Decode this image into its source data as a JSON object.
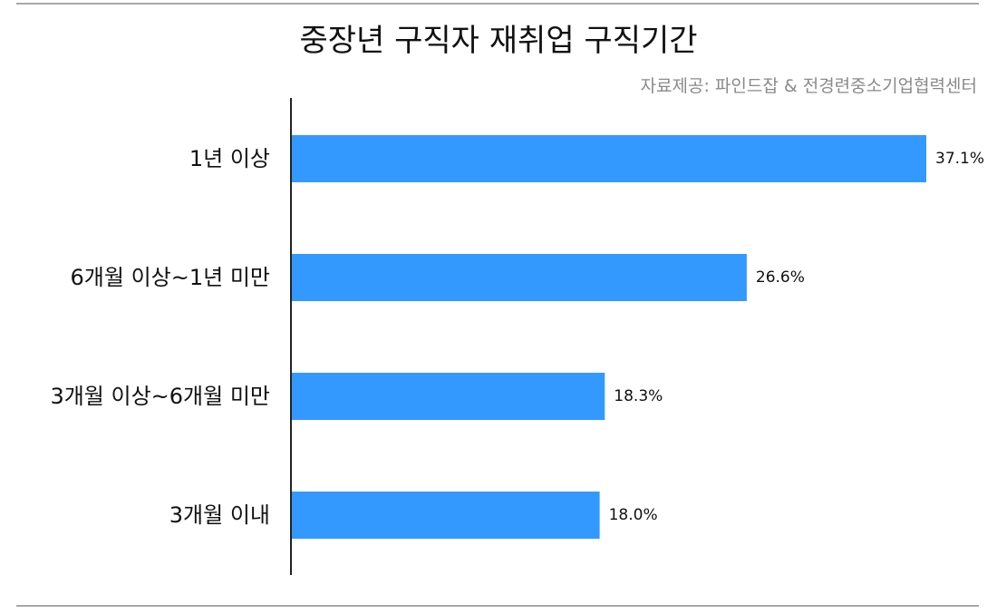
{
  "title": "중장년 구직자 재취업 구직기간",
  "source": "자료제공: 파인드잡 & 전경련중소기업협력센터",
  "colors": {
    "bar": "#3399ff",
    "axis": "#222222",
    "rule": "#a8a8a8",
    "source_text": "#8a8a8a"
  },
  "chart_data": {
    "type": "bar",
    "orientation": "horizontal",
    "title": "중장년 구직자 재취업 구직기간",
    "categories": [
      "1년 이상",
      "6개월 이상~1년 미만",
      "3개월 이상~6개월 미만",
      "3개월 이내"
    ],
    "values": [
      37.1,
      26.6,
      18.3,
      18.0
    ],
    "value_labels": [
      "37.1%",
      "26.6%",
      "18.3%",
      "18.0%"
    ],
    "unit": "%",
    "xlabel": "",
    "ylabel": "",
    "xlim": [
      0,
      37.1
    ],
    "grid": false,
    "legend": "none"
  }
}
